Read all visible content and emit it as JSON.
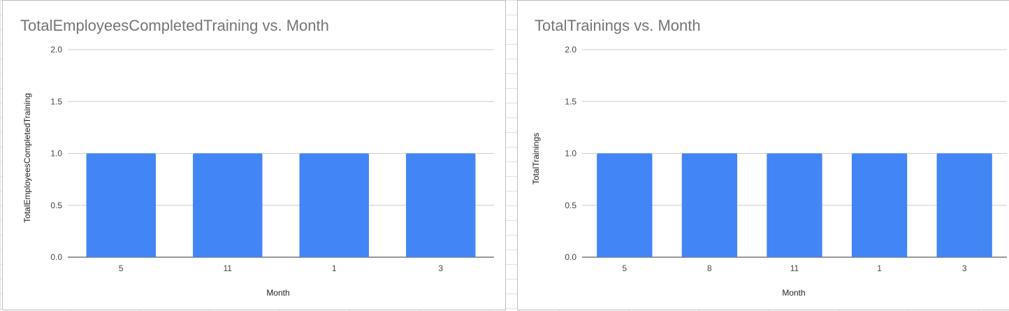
{
  "charts": [
    {
      "chart_data": {
        "type": "bar",
        "title": "TotalEmployeesCompletedTraining vs. Month",
        "xlabel": "Month",
        "ylabel": "TotalEmployeesCompletedTraining",
        "categories": [
          "5",
          "11",
          "1",
          "3"
        ],
        "values": [
          1,
          1,
          1,
          1
        ],
        "ylim": [
          0,
          2
        ],
        "yticks": [
          "0.0",
          "0.5",
          "1.0",
          "1.5",
          "2.0"
        ],
        "grid": true,
        "legend": "none",
        "bar_color": "#4285f4"
      }
    },
    {
      "chart_data": {
        "type": "bar",
        "title": "TotalTrainings vs. Month",
        "xlabel": "Month",
        "ylabel": "TotalTrainings",
        "categories": [
          "5",
          "8",
          "11",
          "1",
          "3"
        ],
        "values": [
          1,
          1,
          1,
          1,
          1
        ],
        "ylim": [
          0,
          2
        ],
        "yticks": [
          "0.0",
          "0.5",
          "1.0",
          "1.5",
          "2.0"
        ],
        "grid": true,
        "legend": "none",
        "bar_color": "#4285f4"
      }
    }
  ]
}
